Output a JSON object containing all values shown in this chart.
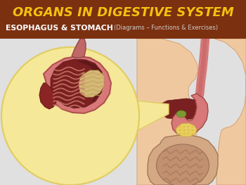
{
  "title_text": "ORGANS IN DIGESTIVE SYSTEM",
  "subtitle_left": "ESOPHAGUS & STOMACH",
  "subtitle_right": "(Diagrams – Functions & Exercises)",
  "header_bg_color": "#7B3010",
  "title_color": "#F5C010",
  "subtitle_left_color": "#FFFFFF",
  "subtitle_right_color": "#CCCCCC",
  "body_bg_color": "#E0E0E0",
  "fig_width": 3.5,
  "fig_height": 2.63,
  "dpi": 100,
  "torso_color": "#F0C8A0",
  "torso_edge": "#D8A878",
  "stomach_pink": "#D87878",
  "stomach_dark": "#8B2020",
  "rugae_color": "#C87850",
  "intestine_color": "#C09878",
  "yellow_circle_fill": "#F5E898",
  "yellow_circle_edge": "#E0CC60",
  "zoom_line_color": "#E8DC70",
  "food_color": "#E8D060",
  "esoph_color": "#D47878"
}
